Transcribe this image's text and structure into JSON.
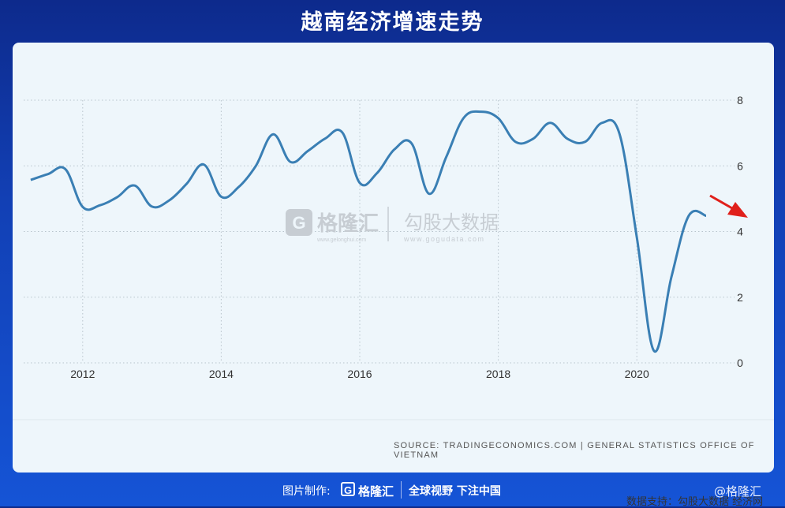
{
  "page": {
    "title": "越南经济增速走势",
    "source_text": "SOURCE: TRADINGECONOMICS.COM  |  GENERAL STATISTICS OFFICE OF VIETNAM",
    "support_text": "数据支持：勾股大数据 经济网",
    "footer": {
      "made_label": "图片制作:",
      "logo_letter": "G",
      "logo_text": "格隆汇",
      "slogan": "全球视野 下注中国"
    },
    "watermark": {
      "left_letter": "G",
      "left_text": "格隆汇",
      "left_sub": "www.gelonghui.com",
      "right_text": "勾股大数据",
      "right_sub": "www.gogudata.com"
    },
    "corner_watermark": "@格隆汇"
  },
  "colors": {
    "line": "#3a7fb4",
    "arrow": "#e0201b",
    "grid": "#b8c4cc",
    "axis_text": "#333333"
  },
  "chart_data": {
    "type": "line",
    "title": "越南经济增速走势",
    "xlabel": "",
    "ylabel": "",
    "x_ticks": [
      "2012",
      "2014",
      "2016",
      "2018",
      "2020"
    ],
    "y_ticks": [
      "0",
      "2",
      "4",
      "6",
      "8"
    ],
    "ylim": [
      0,
      8
    ],
    "xlim": [
      2011.0,
      2022.0
    ],
    "grid": true,
    "series": [
      {
        "values": [
          [
            2011.25,
            5.57
          ],
          [
            2011.5,
            5.75
          ],
          [
            2011.75,
            5.9
          ],
          [
            2012.0,
            4.75
          ],
          [
            2012.25,
            4.8
          ],
          [
            2012.5,
            5.05
          ],
          [
            2012.75,
            5.4
          ],
          [
            2013.0,
            4.76
          ],
          [
            2013.25,
            4.95
          ],
          [
            2013.5,
            5.45
          ],
          [
            2013.75,
            6.04
          ],
          [
            2014.0,
            5.06
          ],
          [
            2014.25,
            5.35
          ],
          [
            2014.5,
            6.0
          ],
          [
            2014.75,
            6.96
          ],
          [
            2015.0,
            6.12
          ],
          [
            2015.25,
            6.45
          ],
          [
            2015.5,
            6.83
          ],
          [
            2015.75,
            7.01
          ],
          [
            2016.0,
            5.48
          ],
          [
            2016.25,
            5.78
          ],
          [
            2016.5,
            6.5
          ],
          [
            2016.75,
            6.68
          ],
          [
            2017.0,
            5.15
          ],
          [
            2017.25,
            6.28
          ],
          [
            2017.5,
            7.46
          ],
          [
            2017.75,
            7.65
          ],
          [
            2018.0,
            7.45
          ],
          [
            2018.25,
            6.73
          ],
          [
            2018.5,
            6.82
          ],
          [
            2018.75,
            7.31
          ],
          [
            2019.0,
            6.82
          ],
          [
            2019.25,
            6.73
          ],
          [
            2019.5,
            7.31
          ],
          [
            2019.75,
            6.97
          ],
          [
            2020.0,
            3.82
          ],
          [
            2020.25,
            0.36
          ],
          [
            2020.5,
            2.62
          ],
          [
            2020.75,
            4.48
          ],
          [
            2021.0,
            4.48
          ]
        ]
      }
    ],
    "annotations": [
      "red arrow pointing to latest value (~4.5)"
    ]
  }
}
